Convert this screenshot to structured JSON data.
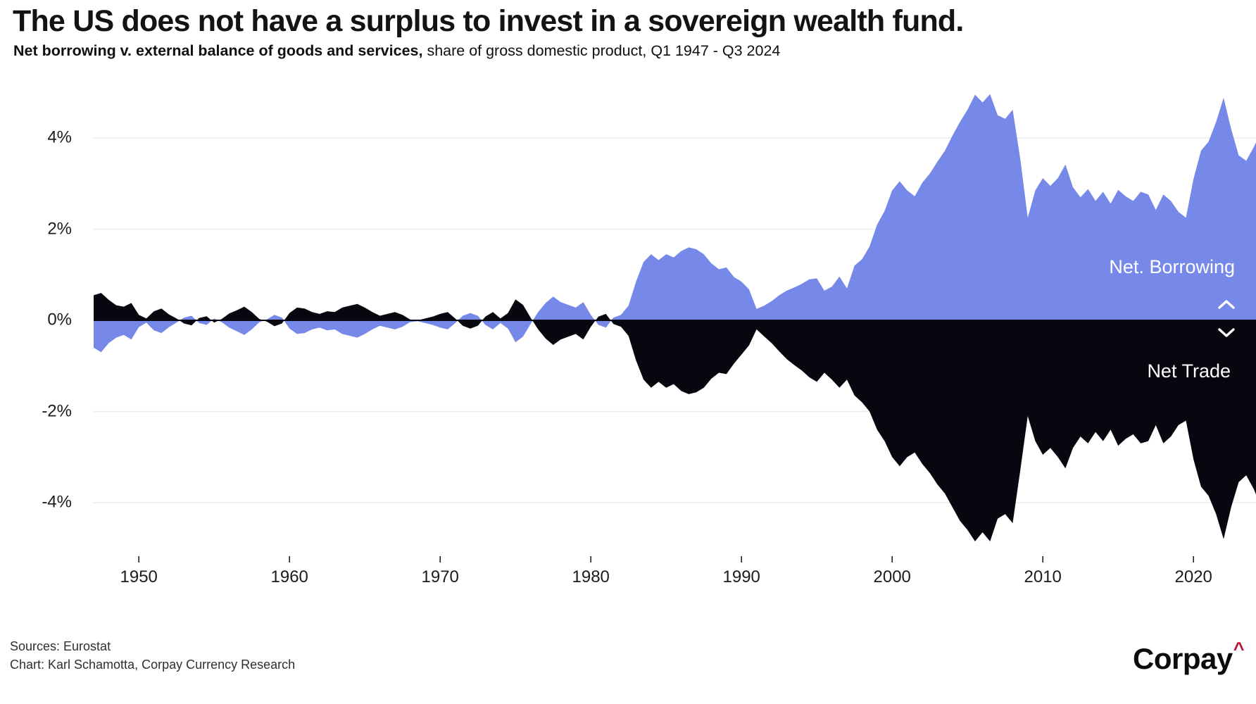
{
  "header": {
    "title": "The US does not have a surplus to invest in a sovereign wealth fund.",
    "subtitle_bold": "Net borrowing v. external balance of goods and services,",
    "subtitle_rest": " share of gross domestic product, Q1 1947 - Q3 2024"
  },
  "legend": {
    "borrowing": "Net. Borrowing",
    "trade": "Net Trade"
  },
  "footer": {
    "sources": "Sources: Eurostat",
    "credit": "Chart: Karl Schamotta, Corpay Currency Research"
  },
  "logo": {
    "text": "Corpay",
    "caret": "^"
  },
  "colors": {
    "borrowing_area": "#7789e8",
    "trade_area": "#07070f",
    "gridline": "#ececec",
    "zero_line": "#0a0a12",
    "tick": "#222222",
    "logo_caret": "#bf1237"
  },
  "chart_data": {
    "type": "area",
    "title": "Net borrowing v. external balance of goods and services, share of gross domestic product, Q1 1947 - Q3 2024",
    "legend_entries": [
      "Net. Borrowing",
      "Net Trade"
    ],
    "xlim": [
      1947,
      2024.75
    ],
    "ylim": [
      -5.2,
      5.2
    ],
    "unit": "% of GDP",
    "x_ticks": [
      1950,
      1960,
      1970,
      1980,
      1990,
      2000,
      2010,
      2020
    ],
    "y_ticks": [
      {
        "label": "4%",
        "value": 4
      },
      {
        "label": "2%",
        "value": 2
      },
      {
        "label": "0%",
        "value": 0
      },
      {
        "label": "-2%",
        "value": -2
      },
      {
        "label": "-4%",
        "value": -4
      }
    ],
    "x": [
      1947,
      1947.5,
      1948,
      1948.5,
      1949,
      1949.5,
      1950,
      1950.5,
      1951,
      1951.5,
      1952,
      1952.5,
      1953,
      1953.5,
      1954,
      1954.5,
      1955,
      1955.5,
      1956,
      1956.5,
      1957,
      1957.5,
      1958,
      1958.5,
      1959,
      1959.5,
      1960,
      1960.5,
      1961,
      1961.5,
      1962,
      1962.5,
      1963,
      1963.5,
      1964,
      1964.5,
      1965,
      1965.5,
      1966,
      1966.5,
      1967,
      1967.5,
      1968,
      1968.5,
      1969,
      1969.5,
      1970,
      1970.5,
      1971,
      1971.5,
      1972,
      1972.5,
      1973,
      1973.5,
      1974,
      1974.5,
      1975,
      1975.5,
      1976,
      1976.5,
      1977,
      1977.5,
      1978,
      1978.5,
      1979,
      1979.5,
      1980,
      1980.5,
      1981,
      1981.5,
      1982,
      1982.5,
      1983,
      1983.5,
      1984,
      1984.5,
      1985,
      1985.5,
      1986,
      1986.5,
      1987,
      1987.5,
      1988,
      1988.5,
      1989,
      1989.5,
      1990,
      1990.5,
      1991,
      1991.5,
      1992,
      1992.5,
      1993,
      1993.5,
      1994,
      1994.5,
      1995,
      1995.5,
      1996,
      1996.5,
      1997,
      1997.5,
      1998,
      1998.5,
      1999,
      1999.5,
      2000,
      2000.5,
      2001,
      2001.5,
      2002,
      2002.5,
      2003,
      2003.5,
      2004,
      2004.5,
      2005,
      2005.5,
      2006,
      2006.5,
      2007,
      2007.5,
      2008,
      2008.5,
      2009,
      2009.5,
      2010,
      2010.5,
      2011,
      2011.5,
      2012,
      2012.5,
      2013,
      2013.5,
      2014,
      2014.5,
      2015,
      2015.5,
      2016,
      2016.5,
      2017,
      2017.5,
      2018,
      2018.5,
      2019,
      2019.5,
      2020,
      2020.5,
      2021,
      2021.5,
      2022,
      2022.5,
      2023,
      2023.5,
      2024,
      2024.5,
      2024.75
    ],
    "series": [
      {
        "name": "Net. Borrowing",
        "values": [
          -0.6,
          -0.7,
          -0.5,
          -0.38,
          -0.32,
          -0.42,
          -0.15,
          -0.05,
          -0.22,
          -0.28,
          -0.15,
          -0.05,
          0.06,
          0.1,
          -0.06,
          -0.1,
          0.04,
          -0.04,
          -0.16,
          -0.24,
          -0.32,
          -0.2,
          -0.04,
          0.02,
          0.12,
          0.06,
          -0.18,
          -0.3,
          -0.28,
          -0.2,
          -0.16,
          -0.22,
          -0.2,
          -0.3,
          -0.34,
          -0.38,
          -0.3,
          -0.2,
          -0.12,
          -0.16,
          -0.2,
          -0.14,
          -0.04,
          -0.02,
          -0.06,
          -0.1,
          -0.16,
          -0.2,
          -0.06,
          0.1,
          0.16,
          0.1,
          -0.1,
          -0.2,
          -0.06,
          -0.18,
          -0.48,
          -0.36,
          -0.08,
          0.18,
          0.38,
          0.52,
          0.4,
          0.34,
          0.28,
          0.4,
          0.12,
          -0.1,
          -0.16,
          0.06,
          0.12,
          0.32,
          0.85,
          1.28,
          1.45,
          1.32,
          1.45,
          1.38,
          1.52,
          1.6,
          1.56,
          1.45,
          1.25,
          1.12,
          1.16,
          0.95,
          0.85,
          0.68,
          0.25,
          0.32,
          0.42,
          0.55,
          0.65,
          0.72,
          0.8,
          0.9,
          0.92,
          0.65,
          0.74,
          0.96,
          0.7,
          1.2,
          1.34,
          1.62,
          2.1,
          2.4,
          2.85,
          3.05,
          2.85,
          2.72,
          3.02,
          3.22,
          3.48,
          3.72,
          4.05,
          4.35,
          4.62,
          4.95,
          4.78,
          4.96,
          4.5,
          4.42,
          4.62,
          3.55,
          2.25,
          2.85,
          3.12,
          2.95,
          3.12,
          3.42,
          2.92,
          2.7,
          2.88,
          2.62,
          2.82,
          2.56,
          2.86,
          2.72,
          2.62,
          2.82,
          2.76,
          2.42,
          2.76,
          2.62,
          2.38,
          2.25,
          3.1,
          3.72,
          3.92,
          4.35,
          4.88,
          4.2,
          3.62,
          3.5,
          3.8,
          4.15,
          4.25
        ]
      },
      {
        "name": "Net Trade",
        "values": [
          0.55,
          0.6,
          0.45,
          0.33,
          0.3,
          0.38,
          0.12,
          0.04,
          0.2,
          0.26,
          0.13,
          0.04,
          -0.07,
          -0.11,
          0.05,
          0.09,
          -0.05,
          0.03,
          0.15,
          0.22,
          0.3,
          0.18,
          0.03,
          -0.03,
          -0.13,
          -0.07,
          0.16,
          0.28,
          0.26,
          0.18,
          0.14,
          0.2,
          0.18,
          0.28,
          0.32,
          0.36,
          0.28,
          0.18,
          0.1,
          0.14,
          0.18,
          0.12,
          0.02,
          0,
          0.04,
          0.08,
          0.14,
          0.18,
          0.04,
          -0.12,
          -0.18,
          -0.12,
          0.08,
          0.18,
          0.04,
          0.16,
          0.46,
          0.34,
          0.06,
          -0.2,
          -0.4,
          -0.54,
          -0.42,
          -0.36,
          -0.3,
          -0.42,
          -0.14,
          0.08,
          0.14,
          -0.08,
          -0.14,
          -0.34,
          -0.88,
          -1.3,
          -1.48,
          -1.35,
          -1.48,
          -1.4,
          -1.55,
          -1.62,
          -1.58,
          -1.48,
          -1.28,
          -1.15,
          -1.18,
          -0.95,
          -0.75,
          -0.55,
          -0.2,
          -0.35,
          -0.5,
          -0.68,
          -0.85,
          -0.98,
          -1.1,
          -1.25,
          -1.35,
          -1.15,
          -1.3,
          -1.48,
          -1.3,
          -1.65,
          -1.8,
          -2,
          -2.4,
          -2.65,
          -3,
          -3.2,
          -3,
          -2.9,
          -3.15,
          -3.35,
          -3.6,
          -3.8,
          -4.1,
          -4.4,
          -4.6,
          -4.85,
          -4.65,
          -4.85,
          -4.35,
          -4.25,
          -4.45,
          -3.3,
          -2.1,
          -2.65,
          -2.95,
          -2.8,
          -3,
          -3.25,
          -2.8,
          -2.55,
          -2.7,
          -2.45,
          -2.65,
          -2.4,
          -2.75,
          -2.6,
          -2.5,
          -2.7,
          -2.65,
          -2.3,
          -2.7,
          -2.55,
          -2.3,
          -2.2,
          -3.05,
          -3.65,
          -3.85,
          -4.25,
          -4.8,
          -4.1,
          -3.55,
          -3.4,
          -3.7,
          -4.1,
          -4.3
        ]
      }
    ]
  }
}
